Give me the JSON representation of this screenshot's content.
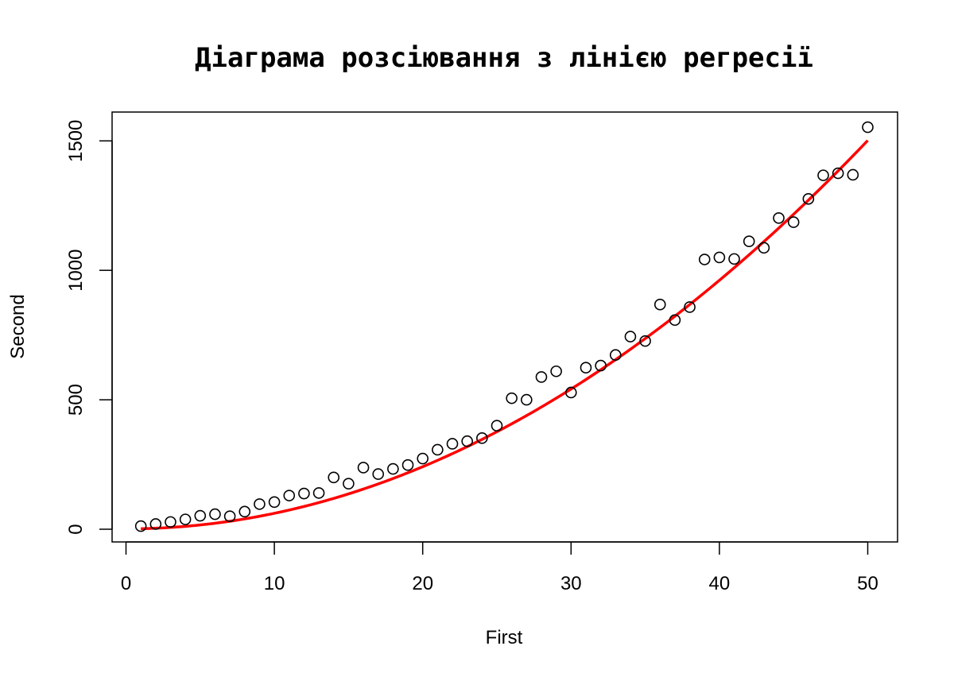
{
  "chart_data": {
    "type": "scatter",
    "title": "Діаграма розсіювання з лінією регресії",
    "xlabel": "First",
    "ylabel": "Second",
    "xlim": [
      0,
      51
    ],
    "ylim": [
      0,
      1550
    ],
    "x_ticks": [
      0,
      10,
      20,
      30,
      40,
      50
    ],
    "y_ticks": [
      0,
      500,
      1000,
      1500
    ],
    "grid": false,
    "colors": {
      "points": "#000000",
      "regression_line": "#ff0000"
    },
    "series": [
      {
        "type": "scatter",
        "marker": "open-circle",
        "x": [
          1,
          2,
          3,
          4,
          5,
          6,
          7,
          8,
          9,
          10,
          11,
          12,
          13,
          14,
          15,
          16,
          17,
          18,
          19,
          20,
          21,
          22,
          23,
          24,
          25,
          26,
          27,
          28,
          29,
          30,
          31,
          32,
          33,
          34,
          35,
          36,
          37,
          38,
          39,
          40,
          41,
          42,
          43,
          44,
          45,
          46,
          47,
          48,
          49,
          50
        ],
        "y": [
          12,
          20,
          28,
          38,
          52,
          58,
          50,
          68,
          97,
          105,
          130,
          138,
          140,
          200,
          176,
          238,
          213,
          233,
          248,
          273,
          307,
          330,
          340,
          352,
          400,
          506,
          500,
          588,
          610,
          528,
          624,
          632,
          673,
          744,
          727,
          868,
          808,
          858,
          1042,
          1050,
          1044,
          1112,
          1087,
          1202,
          1186,
          1276,
          1367,
          1375,
          1369,
          1553
        ]
      },
      {
        "type": "line",
        "curve": "quadratic",
        "coefficients": [
          0.6,
          0,
          1.5
        ],
        "x_range": [
          1,
          50
        ]
      }
    ]
  }
}
